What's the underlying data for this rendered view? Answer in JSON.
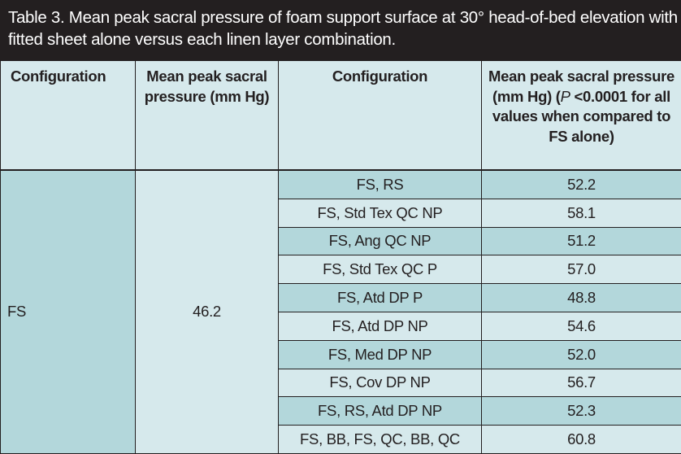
{
  "title": "Table 3. Mean peak sacral pressure of foam support surface at 30° head-of-bed elevation with fitted sheet alone versus each linen layer combination.",
  "headers": {
    "col1": "Configuration",
    "col2": "Mean peak sacral pressure (mm Hg)",
    "col3": "Configuration",
    "col4_prefix": "Mean peak sacral pressure (mm Hg) (",
    "col4_p": "P",
    "col4_suffix": " <0.0001 for all values when compared to FS alone)"
  },
  "baseline": {
    "configuration": "FS",
    "pressure": "46.2"
  },
  "rows": [
    {
      "configuration": "FS, RS",
      "pressure": "52.2"
    },
    {
      "configuration": "FS, Std Tex QC NP",
      "pressure": "58.1"
    },
    {
      "configuration": "FS, Ang QC NP",
      "pressure": "51.2"
    },
    {
      "configuration": "FS, Std Tex QC P",
      "pressure": "57.0"
    },
    {
      "configuration": "FS, Atd DP P",
      "pressure": "48.8"
    },
    {
      "configuration": "FS, Atd DP NP",
      "pressure": "54.6"
    },
    {
      "configuration": "FS, Med DP NP",
      "pressure": "52.0"
    },
    {
      "configuration": "FS, Cov DP NP",
      "pressure": "56.7"
    },
    {
      "configuration": "FS, RS, Atd DP NP",
      "pressure": "52.3"
    },
    {
      "configuration": "FS, BB, FS, QC, BB, QC",
      "pressure": "60.8"
    }
  ],
  "colors": {
    "title_bg": "#231f20",
    "dark_cell": "#b3d7db",
    "light_cell": "#d6e9ec"
  }
}
